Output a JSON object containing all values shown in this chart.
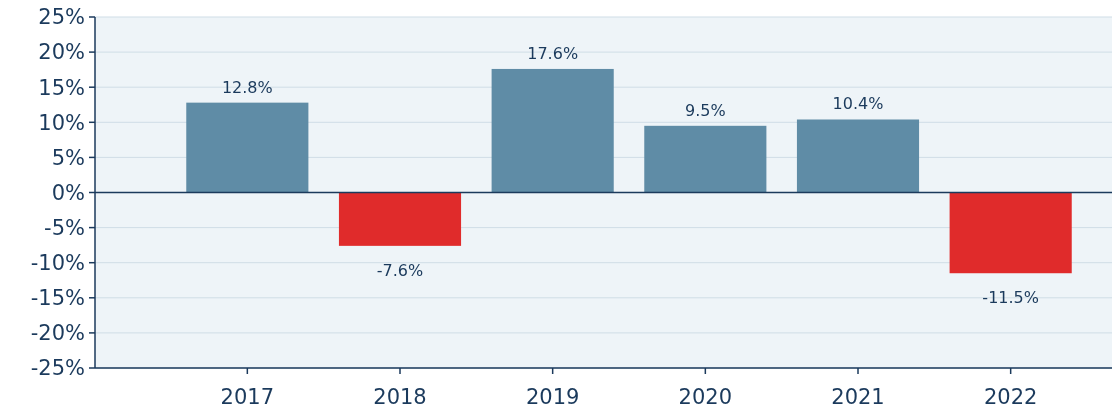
{
  "chart_data": {
    "type": "bar",
    "categories": [
      "2017",
      "2018",
      "2019",
      "2020",
      "2021",
      "2022"
    ],
    "values": [
      12.8,
      -7.6,
      17.6,
      9.5,
      10.4,
      -11.5
    ],
    "colors": [
      "#5f8ca6",
      "#e02b2b",
      "#5f8ca6",
      "#5f8ca6",
      "#5f8ca6",
      "#e02b2b"
    ],
    "value_labels": [
      "12.8%",
      "-7.6%",
      "17.6%",
      "9.5%",
      "10.4%",
      "-11.5%"
    ],
    "ylim": [
      -25,
      25
    ],
    "yticks": [
      {
        "value": 25,
        "label": "25%"
      },
      {
        "value": 20,
        "label": "20%"
      },
      {
        "value": 15,
        "label": "15%"
      },
      {
        "value": 10,
        "label": "10%"
      },
      {
        "value": 5,
        "label": "5%"
      },
      {
        "value": 0,
        "label": "0%"
      },
      {
        "value": -5,
        "label": "-5%"
      },
      {
        "value": -10,
        "label": "-10%"
      },
      {
        "value": -15,
        "label": "-15%"
      },
      {
        "value": -20,
        "label": "-20%"
      },
      {
        "value": -25,
        "label": "-25%"
      }
    ],
    "grid": "y"
  }
}
